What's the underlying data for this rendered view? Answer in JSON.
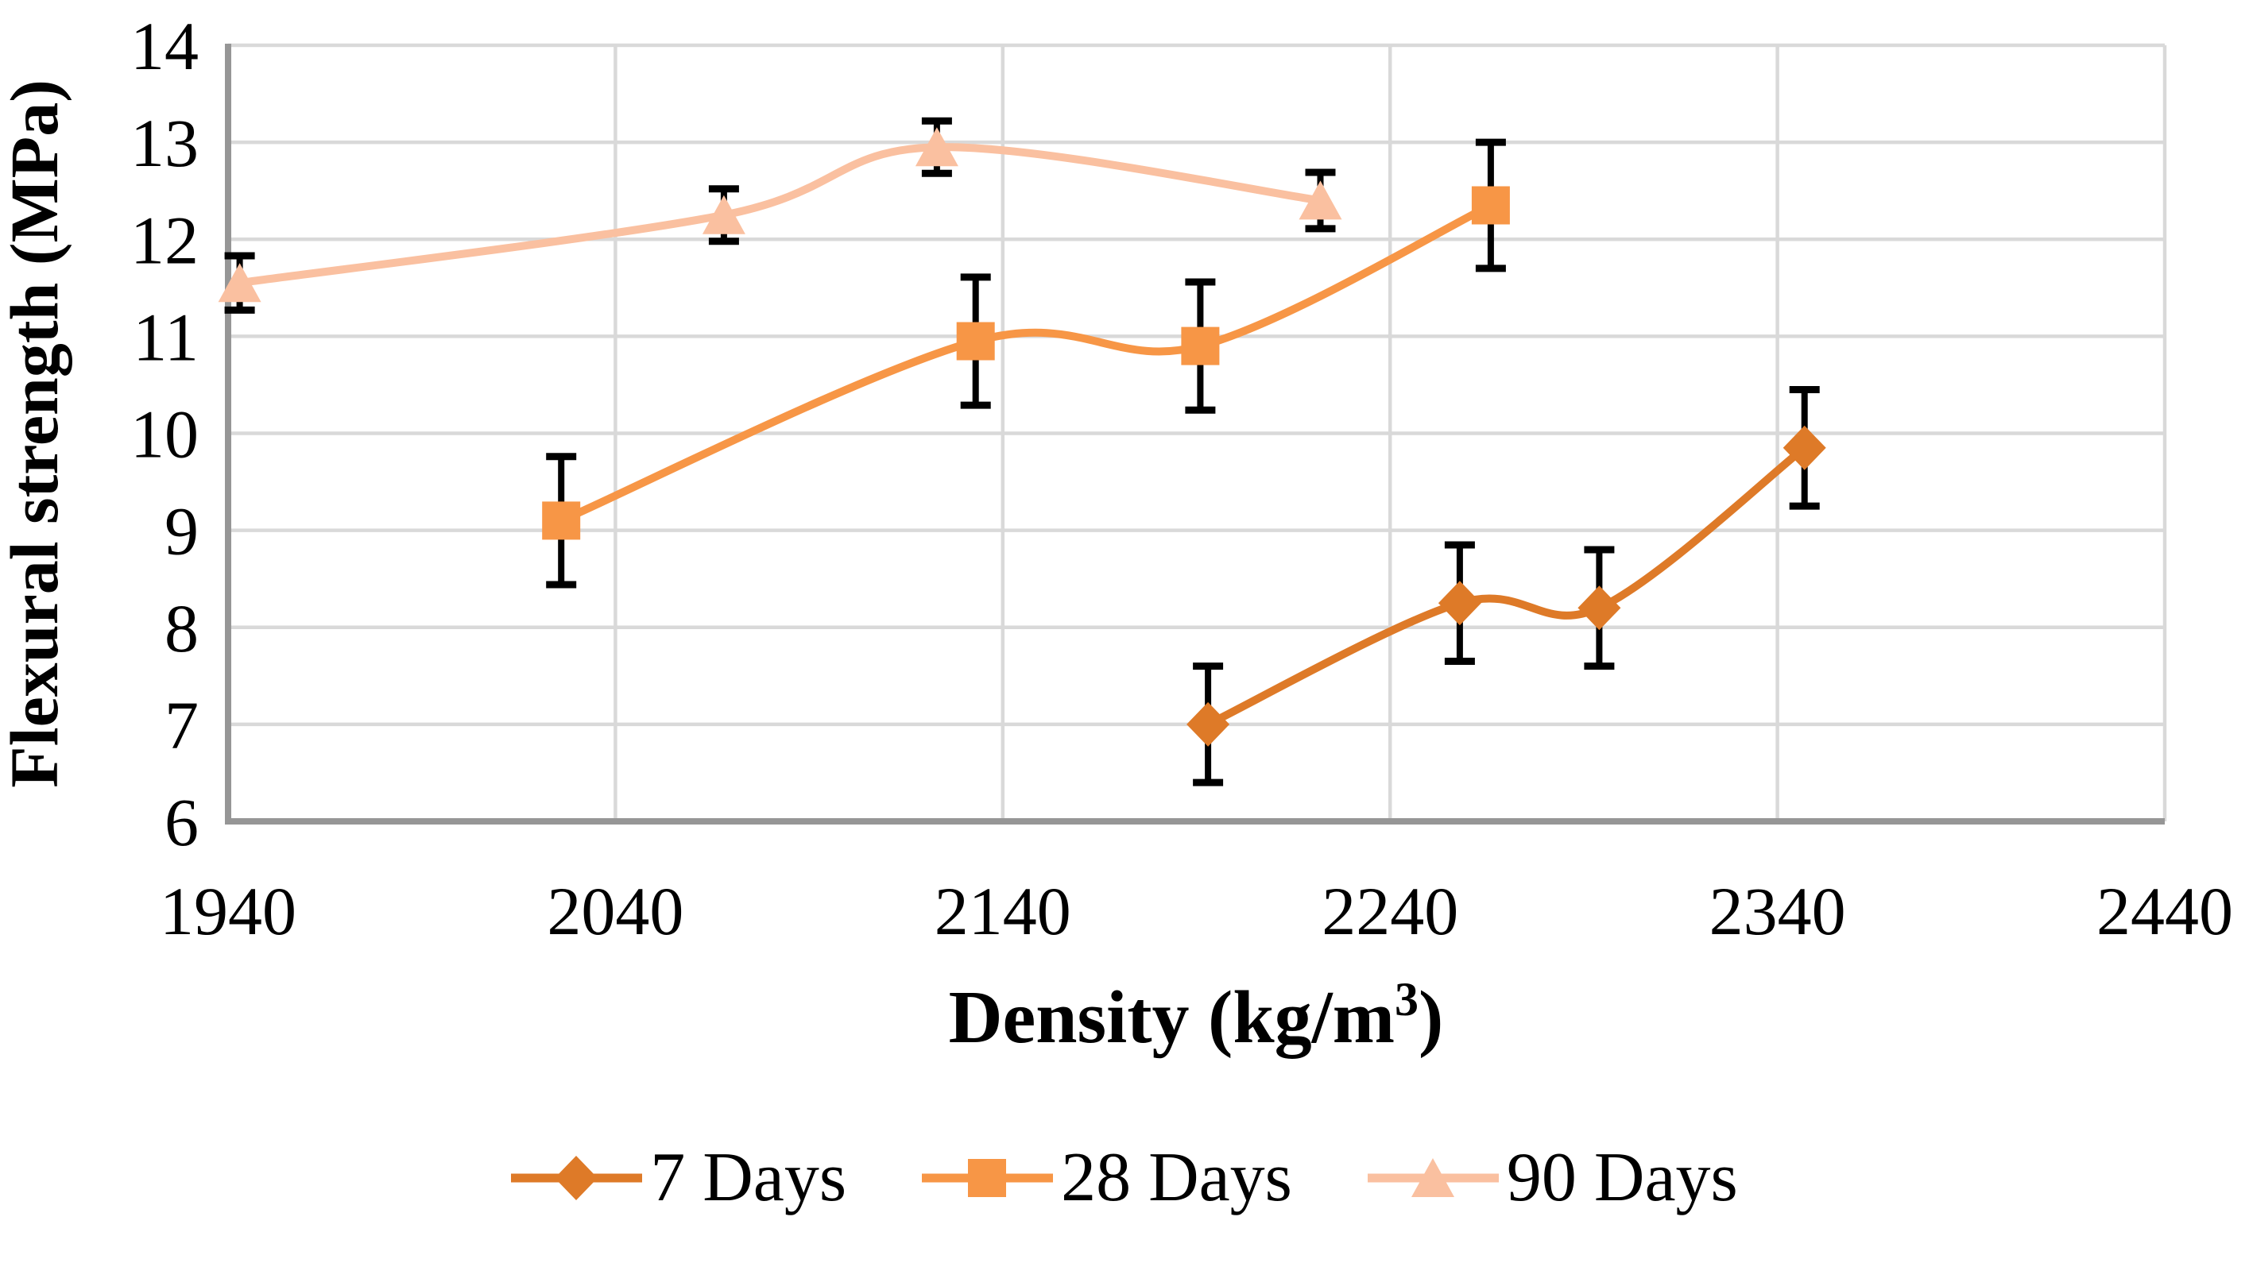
{
  "figure": {
    "background": "#FFFFFF"
  },
  "chart_data": {
    "type": "line",
    "title": "",
    "xlabel": "Density (kg/m³)",
    "ylabel": "Flexural strength (MPa)",
    "xlim": [
      1940,
      2440
    ],
    "ylim": [
      6,
      14
    ],
    "x_ticks": [
      1940,
      2040,
      2140,
      2240,
      2340,
      2440
    ],
    "y_ticks": [
      6,
      7,
      8,
      9,
      10,
      11,
      12,
      13,
      14
    ],
    "grid": true,
    "smooth_lines": true,
    "error_bars": true,
    "legend_position": "bottom",
    "axis_color": "#969696",
    "grid_color": "#D9D9D9",
    "error_bar_color": "#000000",
    "series": [
      {
        "name": "7 Days",
        "marker": "diamond",
        "color": "#DE7A28",
        "points": [
          {
            "x": 2193,
            "y": 7.0,
            "err": 0.6
          },
          {
            "x": 2258,
            "y": 8.25,
            "err": 0.6
          },
          {
            "x": 2294,
            "y": 8.2,
            "err": 0.6
          },
          {
            "x": 2347,
            "y": 9.85,
            "err": 0.6
          }
        ]
      },
      {
        "name": "28 Days",
        "marker": "square",
        "color": "#F79646",
        "points": [
          {
            "x": 2026,
            "y": 9.1,
            "err": 0.66
          },
          {
            "x": 2133,
            "y": 10.95,
            "err": 0.66
          },
          {
            "x": 2191,
            "y": 10.9,
            "err": 0.66
          },
          {
            "x": 2266,
            "y": 12.35,
            "err": 0.65
          }
        ]
      },
      {
        "name": "90 Days",
        "marker": "triangle",
        "color": "#FAC0A0",
        "points": [
          {
            "x": 1943,
            "y": 11.55,
            "err": 0.28
          },
          {
            "x": 2068,
            "y": 12.25,
            "err": 0.27
          },
          {
            "x": 2123,
            "y": 12.95,
            "err": 0.27
          },
          {
            "x": 2222,
            "y": 12.4,
            "err": 0.29
          }
        ]
      }
    ]
  }
}
